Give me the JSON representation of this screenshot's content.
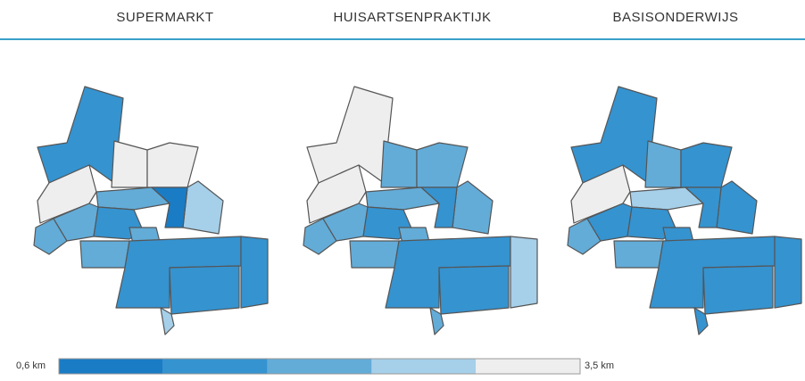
{
  "tabs": [
    "SUPERMARKT",
    "HUISARTSENPRAKTIJK",
    "BASISONDERWIJS"
  ],
  "legend": {
    "min_label": "0,6 km",
    "max_label": "3,5 km",
    "colors": [
      "#1a7cc5",
      "#3593d0",
      "#63acd8",
      "#a6cfe9",
      "#eeeeee"
    ]
  },
  "maps": [
    {
      "region_classes": [
        1,
        4,
        4,
        4,
        3,
        2,
        0,
        2,
        2,
        1,
        2,
        2,
        1,
        1,
        1,
        3
      ]
    },
    {
      "region_classes": [
        4,
        4,
        2,
        2,
        2,
        2,
        1,
        2,
        2,
        1,
        2,
        2,
        1,
        3,
        1,
        2
      ]
    },
    {
      "region_classes": [
        1,
        4,
        2,
        1,
        1,
        3,
        1,
        2,
        1,
        1,
        1,
        2,
        1,
        1,
        1,
        1
      ]
    }
  ]
}
